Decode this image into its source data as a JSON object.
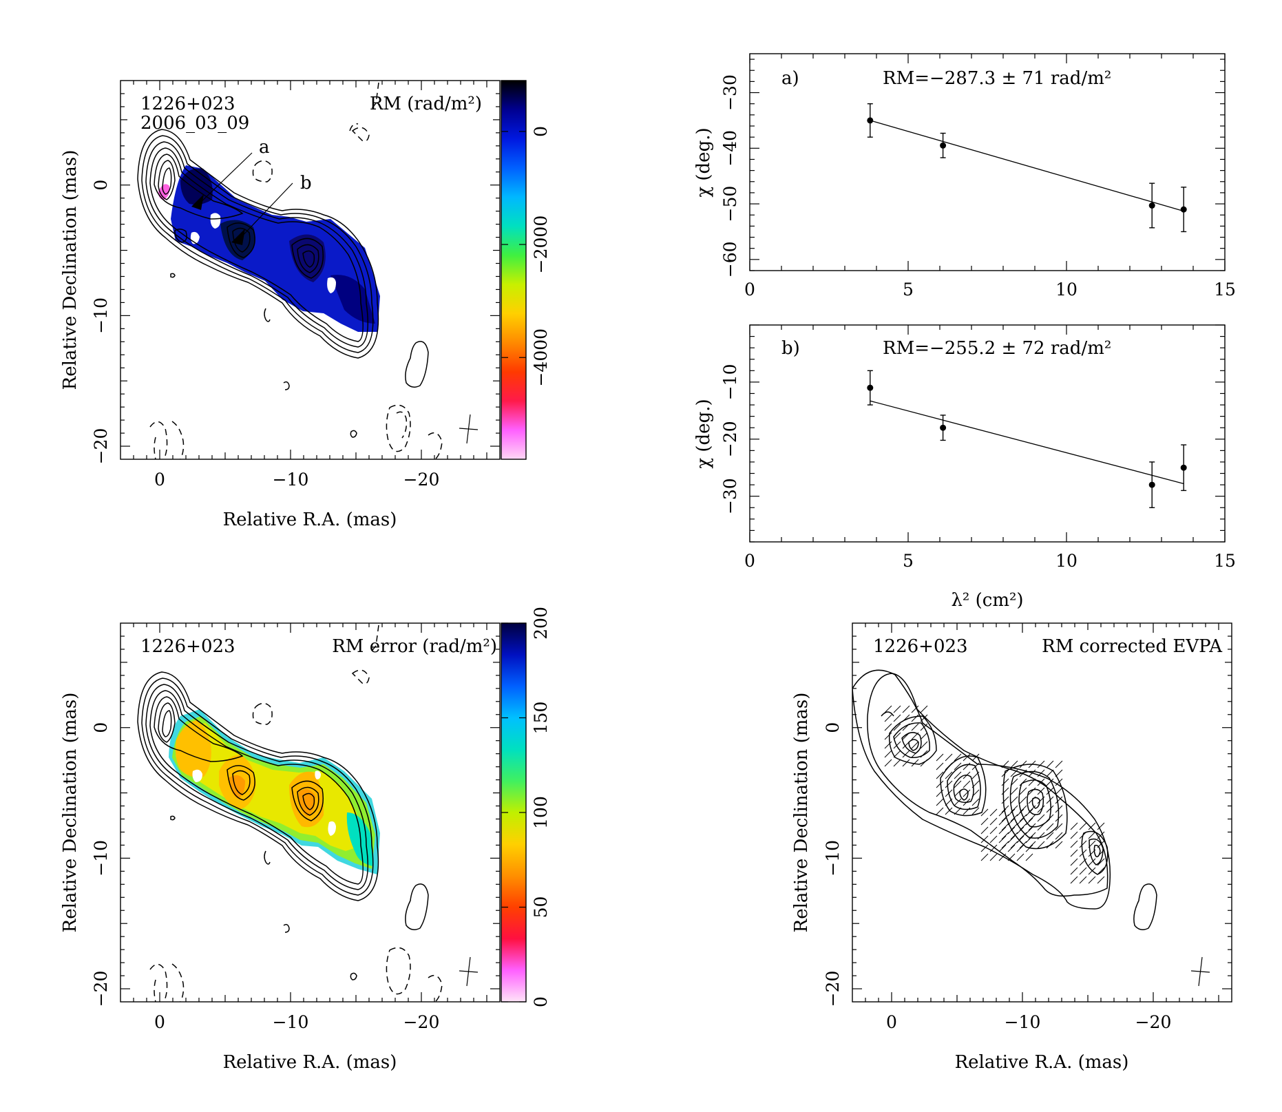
{
  "panels": {
    "rm_map": {
      "source": "1226+023",
      "date": "2006_03_09",
      "label": "RM (rad/m²)",
      "annotations": [
        "a",
        "b"
      ],
      "xlabel": "Relative R.A. (mas)",
      "ylabel": "Relative Declination (mas)",
      "xticks": [
        "0",
        "−10",
        "−20"
      ],
      "yticks": [
        "0",
        "−10",
        "−20"
      ],
      "colorbar": {
        "ticks": [
          "0",
          "−2000",
          "−4000"
        ],
        "range": [
          -5800,
          900
        ],
        "colors": [
          "#ffd7f5",
          "#ff60ff",
          "#ff1a4a",
          "#ff3a00",
          "#ff8a00",
          "#ffd000",
          "#c8f000",
          "#40f040",
          "#00e0c0",
          "#00b8ff",
          "#0060ff",
          "#0018e0",
          "#000090",
          "#000000"
        ]
      }
    },
    "rm_error": {
      "source": "1226+023",
      "label": "RM error (rad/m²)",
      "xlabel": "Relative R.A. (mas)",
      "ylabel": "Relative Declination (mas)",
      "xticks": [
        "0",
        "−10",
        "−20"
      ],
      "yticks": [
        "0",
        "−10",
        "−20"
      ],
      "colorbar": {
        "ticks": [
          "0",
          "50",
          "100",
          "150",
          "200"
        ],
        "range": [
          0,
          200
        ],
        "colors": [
          "#ffe4f8",
          "#ff60ff",
          "#ff1040",
          "#ff4000",
          "#ff9000",
          "#ffd000",
          "#c0f000",
          "#40f060",
          "#00e0c0",
          "#00c0ff",
          "#0060ff",
          "#0010c0",
          "#000040"
        ]
      }
    },
    "evpa": {
      "source": "1226+023",
      "label": "RM corrected EVPA",
      "xlabel": "Relative R.A. (mas)",
      "ylabel": "Relative Declination (mas)",
      "xticks": [
        "0",
        "−10",
        "−20"
      ],
      "yticks": [
        "0",
        "−10",
        "−20"
      ]
    },
    "fit_a": {
      "tag": "a)",
      "label": "RM=−287.3 ± 71 rad/m²",
      "yticks": [
        "−30",
        "−40",
        "−50",
        "−60"
      ],
      "xticks": [
        "0",
        "5",
        "10",
        "15"
      ]
    },
    "fit_b": {
      "tag": "b)",
      "label": "RM=−255.2 ± 72 rad/m²",
      "yticks": [
        "−10",
        "−20",
        "−30"
      ],
      "xticks": [
        "0",
        "5",
        "10",
        "15"
      ]
    },
    "fit_ylabel": "χ (deg.)",
    "fit_xlabel": "λ² (cm²)"
  },
  "chart_data": [
    {
      "type": "scatter",
      "title": "a)",
      "annotation": "RM=−287.3 ± 71 rad/m²",
      "xlabel": "λ² (cm²)",
      "ylabel": "χ (deg.)",
      "xlim": [
        0,
        15
      ],
      "ylim": [
        -62,
        -23
      ],
      "x": [
        3.8,
        6.1,
        12.7,
        13.7
      ],
      "y": [
        -35,
        -39.5,
        -50.3,
        -51
      ],
      "yerr": [
        3,
        2.2,
        4,
        4
      ],
      "fit": {
        "slope": -1.65,
        "x0": 3.8,
        "y0": -35.0,
        "x1": 13.7,
        "y1": -51.3
      }
    },
    {
      "type": "scatter",
      "title": "b)",
      "annotation": "RM=−255.2 ± 72 rad/m²",
      "xlabel": "λ² (cm²)",
      "ylabel": "χ (deg.)",
      "xlim": [
        0,
        15
      ],
      "ylim": [
        -38,
        0
      ],
      "x": [
        3.8,
        6.1,
        12.7,
        13.7
      ],
      "y": [
        -11,
        -18,
        -28,
        -25
      ],
      "yerr": [
        3,
        2.2,
        4,
        4
      ],
      "fit": {
        "x0": 3.8,
        "y0": -13.3,
        "x1": 13.7,
        "y1": -27.8
      }
    }
  ]
}
